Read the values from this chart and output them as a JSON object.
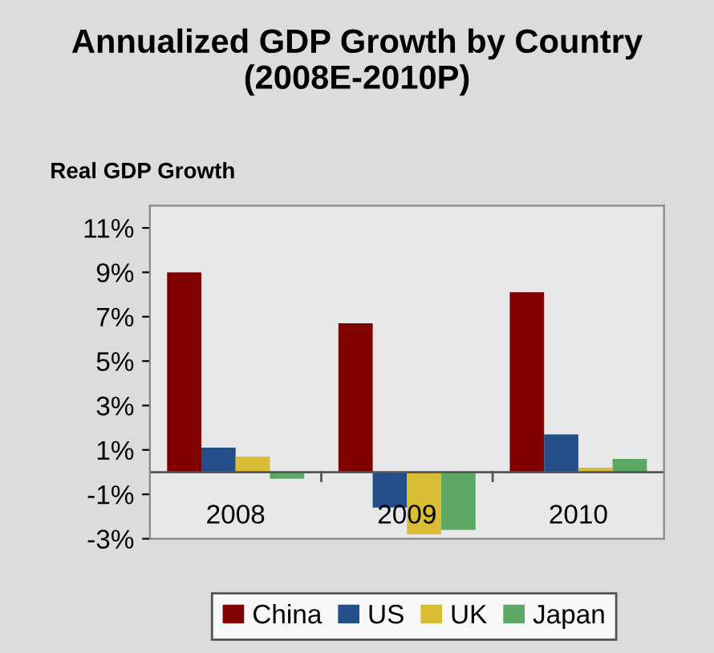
{
  "chart_data": {
    "type": "bar",
    "title": "Annualized GDP Growth by Country (2008E-2010P)",
    "ylabel": "Real GDP Growth",
    "categories": [
      "2008",
      "2009",
      "2010"
    ],
    "series": [
      {
        "name": "China",
        "color": "#800000",
        "values": [
          9.0,
          6.7,
          8.1
        ]
      },
      {
        "name": "US",
        "color": "#234e8a",
        "values": [
          1.1,
          -1.6,
          1.7
        ]
      },
      {
        "name": "UK",
        "color": "#d9bd35",
        "values": [
          0.7,
          -2.8,
          0.2
        ]
      },
      {
        "name": "Japan",
        "color": "#5ea866",
        "values": [
          -0.3,
          -2.6,
          0.6
        ]
      }
    ],
    "ylim": [
      -3,
      12
    ],
    "yticks": [
      {
        "value": -3,
        "label": "-3%"
      },
      {
        "value": -1,
        "label": "-1%"
      },
      {
        "value": 1,
        "label": "1%"
      },
      {
        "value": 3,
        "label": "3%"
      },
      {
        "value": 5,
        "label": "5%"
      },
      {
        "value": 7,
        "label": "7%"
      },
      {
        "value": 9,
        "label": "9%"
      },
      {
        "value": 11,
        "label": "11%"
      }
    ],
    "grid": false,
    "legend": "bottom"
  }
}
